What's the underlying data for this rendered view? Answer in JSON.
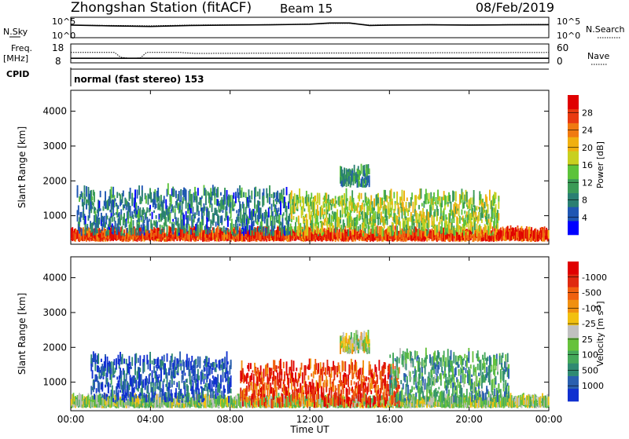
{
  "header": {
    "station": "Zhongshan Station (fitACF)",
    "beam": "Beam 15",
    "date": "08/Feb/2019"
  },
  "chart_data": [
    {
      "panel": "noise",
      "type": "line",
      "left_label": "N.Sky",
      "right_label": "N.Search",
      "left_ticks": [
        "10^5",
        "10^0"
      ],
      "right_ticks": [
        "10^5",
        "10^0"
      ],
      "series": [
        {
          "name": "N.Sky",
          "x": [
            0,
            2,
            4,
            6,
            8,
            10,
            12,
            13,
            14,
            15,
            16,
            18,
            20,
            22,
            24
          ],
          "y": [
            0.62,
            0.58,
            0.55,
            0.6,
            0.62,
            0.63,
            0.66,
            0.72,
            0.72,
            0.6,
            0.62,
            0.63,
            0.62,
            0.63,
            0.64
          ]
        },
        {
          "name": "N.Search",
          "x": [
            0,
            2,
            4,
            6,
            8,
            10,
            12,
            13,
            14,
            15,
            16,
            18,
            20,
            22,
            24
          ],
          "y": [
            0.62,
            0.6,
            0.58,
            0.62,
            0.63,
            0.64,
            0.67,
            0.7,
            0.7,
            0.62,
            0.63,
            0.64,
            0.63,
            0.64,
            0.65
          ]
        }
      ]
    },
    {
      "panel": "freq",
      "type": "line",
      "left_label": "Freq.",
      "left_unit": "[MHz]",
      "right_label": "Nave",
      "left_ticks": [
        "18",
        "8"
      ],
      "right_ticks": [
        "60",
        "0"
      ],
      "series": [
        {
          "name": "Freq.",
          "x": [
            0,
            24
          ],
          "y": [
            10.4,
            10.4
          ]
        },
        {
          "name": "Nave",
          "x": [
            0,
            2.2,
            2.5,
            3,
            3.5,
            3.8,
            5.5,
            6.2,
            24
          ],
          "y": [
            33,
            33,
            18,
            14,
            16,
            33,
            33,
            30,
            33
          ]
        }
      ]
    },
    {
      "panel": "cpid",
      "label": "CPID",
      "value": "normal (fast stereo) 153"
    },
    {
      "panel": "power",
      "type": "heatmap",
      "ylabel": "Slant Range [km]",
      "y_ticks": [
        "1000",
        "2000",
        "3000",
        "4000"
      ],
      "ylim": [
        180,
        4600
      ],
      "xlim": [
        0,
        24
      ],
      "colorbar": {
        "label": "Power [dB]",
        "ticks": [
          "4",
          "8",
          "12",
          "16",
          "20",
          "24",
          "28"
        ],
        "colors": [
          "#0000ff",
          "#1f56b3",
          "#2a7f72",
          "#3b9b57",
          "#5cc33a",
          "#c8d020",
          "#f0b010",
          "#f07a10",
          "#e93a10",
          "#e00000"
        ]
      },
      "regions": [
        {
          "t": [
            0,
            24
          ],
          "r": [
            250,
            400
          ],
          "level": 0.85
        },
        {
          "t": [
            0.3,
            11
          ],
          "r": [
            400,
            1600
          ],
          "level": 0.25
        },
        {
          "t": [
            11,
            21.5
          ],
          "r": [
            400,
            1500
          ],
          "level": 0.5
        },
        {
          "t": [
            13.5,
            15
          ],
          "r": [
            1800,
            2200
          ],
          "level": 0.3
        }
      ]
    },
    {
      "panel": "velocity",
      "type": "heatmap",
      "ylabel": "Slant Range [km]",
      "y_ticks": [
        "1000",
        "2000",
        "3000",
        "4000"
      ],
      "ylim": [
        180,
        4600
      ],
      "xlim": [
        0,
        24
      ],
      "colorbar": {
        "label": "Velocity [m s^-1]",
        "ticks": [
          "1000",
          "500",
          "100",
          "25",
          "-25",
          "-100",
          "-500",
          "-1000"
        ],
        "colors": [
          "#1030d0",
          "#2a5faf",
          "#2f8a72",
          "#45a85a",
          "#66c23c",
          "#c0c0c0",
          "#f2c010",
          "#f09010",
          "#f06010",
          "#e02a10",
          "#e00000"
        ]
      },
      "regions": [
        {
          "t": [
            0,
            24
          ],
          "r": [
            250,
            380
          ],
          "level": 0.45
        },
        {
          "t": [
            1,
            8
          ],
          "r": [
            400,
            1600
          ],
          "level": 0.1
        },
        {
          "t": [
            8.5,
            16.5
          ],
          "r": [
            250,
            1400
          ],
          "level": 0.85
        },
        {
          "t": [
            16,
            22
          ],
          "r": [
            400,
            1700
          ],
          "level": 0.3
        },
        {
          "t": [
            13.5,
            15
          ],
          "r": [
            1800,
            2200
          ],
          "level": 0.5
        }
      ]
    }
  ],
  "x_axis": {
    "label": "Time UT",
    "ticks": [
      "00:00",
      "04:00",
      "08:00",
      "12:00",
      "16:00",
      "20:00",
      "00:00"
    ],
    "values": [
      0,
      4,
      8,
      12,
      16,
      20,
      24
    ]
  }
}
